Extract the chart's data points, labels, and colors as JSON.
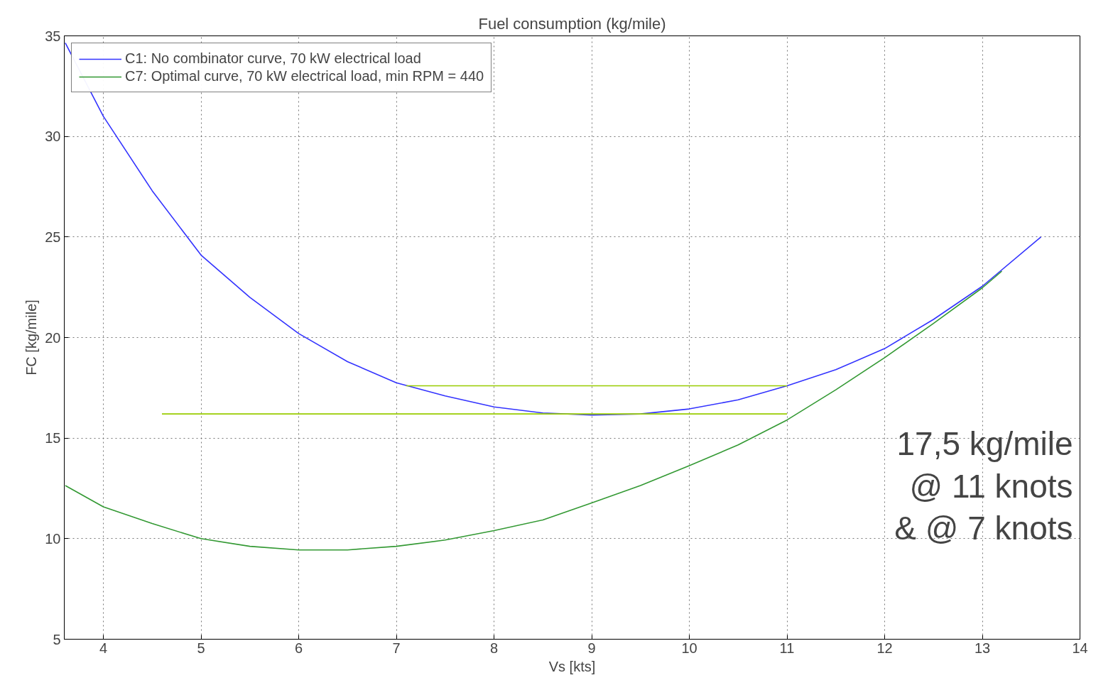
{
  "chart_data": {
    "type": "line",
    "title": "Fuel consumption (kg/mile)",
    "xlabel": "Vs [kts]",
    "ylabel": "FC [kg/mile]",
    "xlim": [
      3.6,
      14
    ],
    "ylim": [
      5,
      35
    ],
    "xticks": [
      4,
      5,
      6,
      7,
      8,
      9,
      10,
      11,
      12,
      13,
      14
    ],
    "yticks": [
      5,
      10,
      15,
      20,
      25,
      30,
      35
    ],
    "grid": true,
    "legend": "top left",
    "annotations": [
      "17,5 kg/mile\n@ 11 knots\n& @ 7 knots"
    ],
    "series": [
      {
        "name": "C1: No combinator curve, 70 kW electrical load",
        "color": "#3333ff",
        "x": [
          3.61,
          4,
          4.5,
          5,
          5.5,
          6,
          6.5,
          7,
          7.5,
          8,
          8.5,
          9,
          9.5,
          10,
          10.5,
          11,
          11.5,
          12,
          12.5,
          13,
          13.6
        ],
        "values": [
          34.65,
          31.0,
          27.3,
          24.1,
          22.0,
          20.2,
          18.8,
          17.75,
          17.1,
          16.55,
          16.25,
          16.15,
          16.2,
          16.45,
          16.9,
          17.6,
          18.4,
          19.45,
          20.9,
          22.55,
          25.0
        ]
      },
      {
        "name": "C7: Optimal curve, 70 kW electrical load, min RPM = 440",
        "color": "#339933",
        "x": [
          3.61,
          4,
          4.5,
          5,
          5.5,
          6,
          6.5,
          7,
          7.5,
          8,
          8.5,
          9,
          9.5,
          10,
          10.5,
          11,
          11.5,
          12,
          12.5,
          13,
          13.2
        ],
        "values": [
          12.64,
          11.58,
          10.75,
          10.0,
          9.62,
          9.44,
          9.44,
          9.62,
          9.93,
          10.4,
          10.93,
          11.78,
          12.64,
          13.63,
          14.66,
          15.9,
          17.4,
          19.0,
          20.7,
          22.47,
          23.3
        ]
      },
      {
        "color": "#99cc00",
        "x": [
          11,
          7.1
        ],
        "values": [
          17.6,
          17.6
        ]
      },
      {
        "color": "#99cc00",
        "x": [
          11,
          4.6
        ],
        "values": [
          16.2,
          16.2
        ]
      }
    ]
  }
}
